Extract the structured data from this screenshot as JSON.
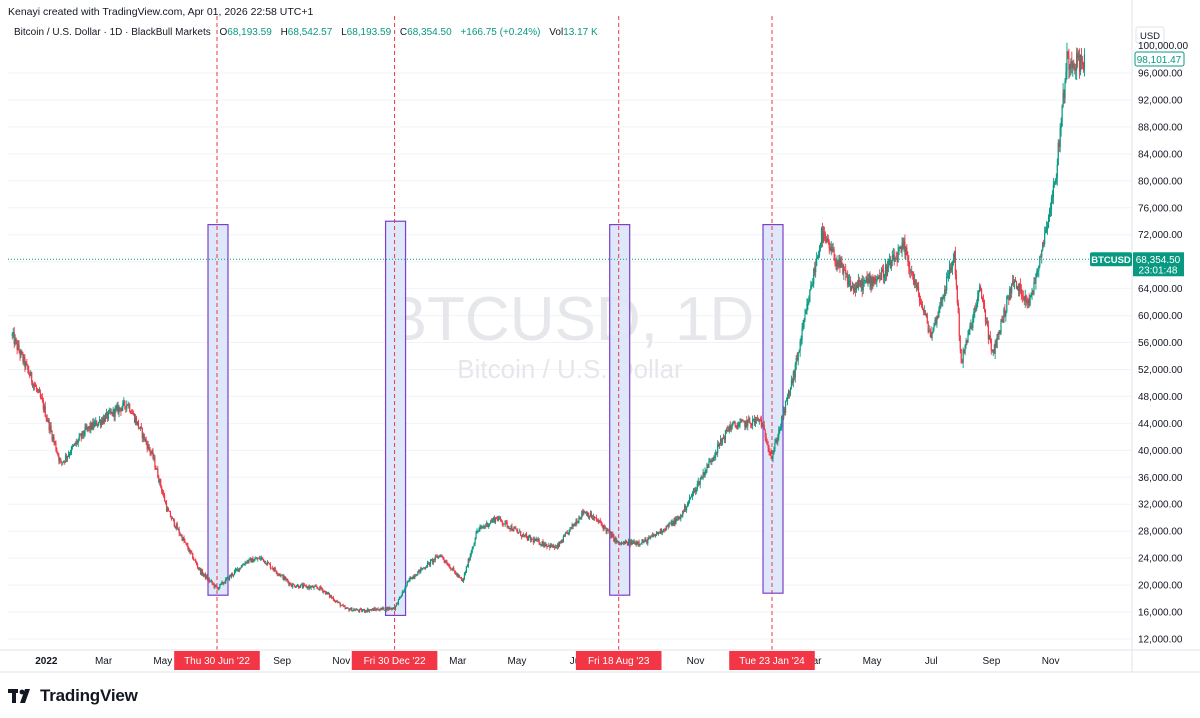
{
  "header": {
    "created_by": "Kenayi created with TradingView.com, Apr 01, 2026 22:58 UTC+1"
  },
  "legend": {
    "symbol_desc": "Bitcoin / U.S. Dollar · 1D · BlackBull Markets",
    "open_label": "O",
    "open": "68,193.59",
    "high_label": "H",
    "high": "68,542.57",
    "low_label": "L",
    "low": "68,193.59",
    "close_label": "C",
    "close": "68,354.50",
    "change": "+166.75 (+0.24%)",
    "vol_label": "Vol",
    "vol": "13.17 K"
  },
  "watermark": {
    "symbol": "BTCUSD, 1D",
    "name": "Bitcoin / U.S. Dollar"
  },
  "price_axis": {
    "currency": "USD",
    "top_partial": "100,000.00",
    "marker_high": "98,101.47",
    "ticker_badge": "BTCUSD",
    "current_price": "68,354.50",
    "countdown": "23:01:48",
    "ticks": [
      "96,000.00",
      "92,000.00",
      "88,000.00",
      "84,000.00",
      "80,000.00",
      "76,000.00",
      "72,000.00",
      "68,000.00",
      "64,000.00",
      "60,000.00",
      "56,000.00",
      "52,000.00",
      "48,000.00",
      "44,000.00",
      "40,000.00",
      "36,000.00",
      "32,000.00",
      "28,000.00",
      "24,000.00",
      "20,000.00",
      "16,000.00",
      "12,000.00"
    ]
  },
  "time_axis": {
    "labels": [
      "2022",
      "Mar",
      "May",
      "Sep",
      "Nov",
      "Mar",
      "May",
      "Jul",
      "Nov",
      "Mar",
      "May",
      "Jul",
      "Sep",
      "Nov"
    ],
    "highlight_dates": [
      "Thu 30 Jun '22",
      "Fri 30 Dec '22",
      "Fri 18 Aug '23",
      "Tue 23 Jan '24"
    ]
  },
  "chart_data": {
    "type": "candlestick",
    "symbol": "BTCUSD",
    "interval": "1D",
    "ylim": [
      10000,
      100000
    ],
    "current_price": 68354.5,
    "series": [
      {
        "name": "BTCUSD",
        "x": [
          "2021-12-01",
          "2022-01-01",
          "2022-01-20",
          "2022-02-15",
          "2022-03-30",
          "2022-04-25",
          "2022-05-10",
          "2022-06-13",
          "2022-06-30",
          "2022-07-30",
          "2022-08-15",
          "2022-09-15",
          "2022-10-15",
          "2022-11-09",
          "2022-11-25",
          "2022-12-30",
          "2023-01-15",
          "2023-02-15",
          "2023-03-10",
          "2023-03-25",
          "2023-04-14",
          "2023-05-15",
          "2023-06-15",
          "2023-07-13",
          "2023-07-30",
          "2023-08-18",
          "2023-09-15",
          "2023-10-20",
          "2023-11-15",
          "2023-12-10",
          "2024-01-11",
          "2024-01-23",
          "2024-02-15",
          "2024-03-14",
          "2024-04-15",
          "2024-05-15",
          "2024-06-07",
          "2024-07-05",
          "2024-07-29",
          "2024-08-05",
          "2024-08-25",
          "2024-09-06",
          "2024-09-27",
          "2024-10-15",
          "2024-10-30",
          "2024-11-10",
          "2024-11-22",
          "2024-12-10"
        ],
        "values": [
          57000,
          47000,
          38000,
          43000,
          47000,
          39000,
          31000,
          22000,
          19500,
          23500,
          24000,
          20000,
          19500,
          16500,
          16200,
          16600,
          21000,
          24500,
          20500,
          28000,
          30000,
          27000,
          25500,
          31000,
          29200,
          26100,
          26500,
          30000,
          37000,
          43500,
          44500,
          39000,
          51500,
          72000,
          64000,
          66000,
          70000,
          57000,
          69000,
          53000,
          64000,
          54000,
          65000,
          62000,
          72000,
          80000,
          98000,
          97500
        ]
      }
    ],
    "annotations": [
      {
        "type": "vertical_line",
        "date": "2022-06-30",
        "label": "Thu 30 Jun '22"
      },
      {
        "type": "vertical_line",
        "date": "2022-12-30",
        "label": "Fri 30 Dec '22"
      },
      {
        "type": "vertical_line",
        "date": "2023-08-18",
        "label": "Fri 18 Aug '23"
      },
      {
        "type": "vertical_line",
        "date": "2024-01-23",
        "label": "Tue 23 Jan '24"
      },
      {
        "type": "rectangle",
        "date": "2022-06-30",
        "from": 18500,
        "to": 73500
      },
      {
        "type": "rectangle",
        "date": "2022-12-30",
        "from": 15500,
        "to": 74000
      },
      {
        "type": "rectangle",
        "date": "2023-08-18",
        "from": 18500,
        "to": 73500
      },
      {
        "type": "rectangle",
        "date": "2024-01-23",
        "from": 18800,
        "to": 73500
      }
    ],
    "colors": {
      "up": "#089981",
      "down": "#f23645",
      "price_line": "#089981",
      "box_fill": "#dbe6fb",
      "box_border": "#7b3fc9",
      "vline": "#f23645"
    }
  },
  "branding": {
    "logo_text": "TradingView"
  }
}
